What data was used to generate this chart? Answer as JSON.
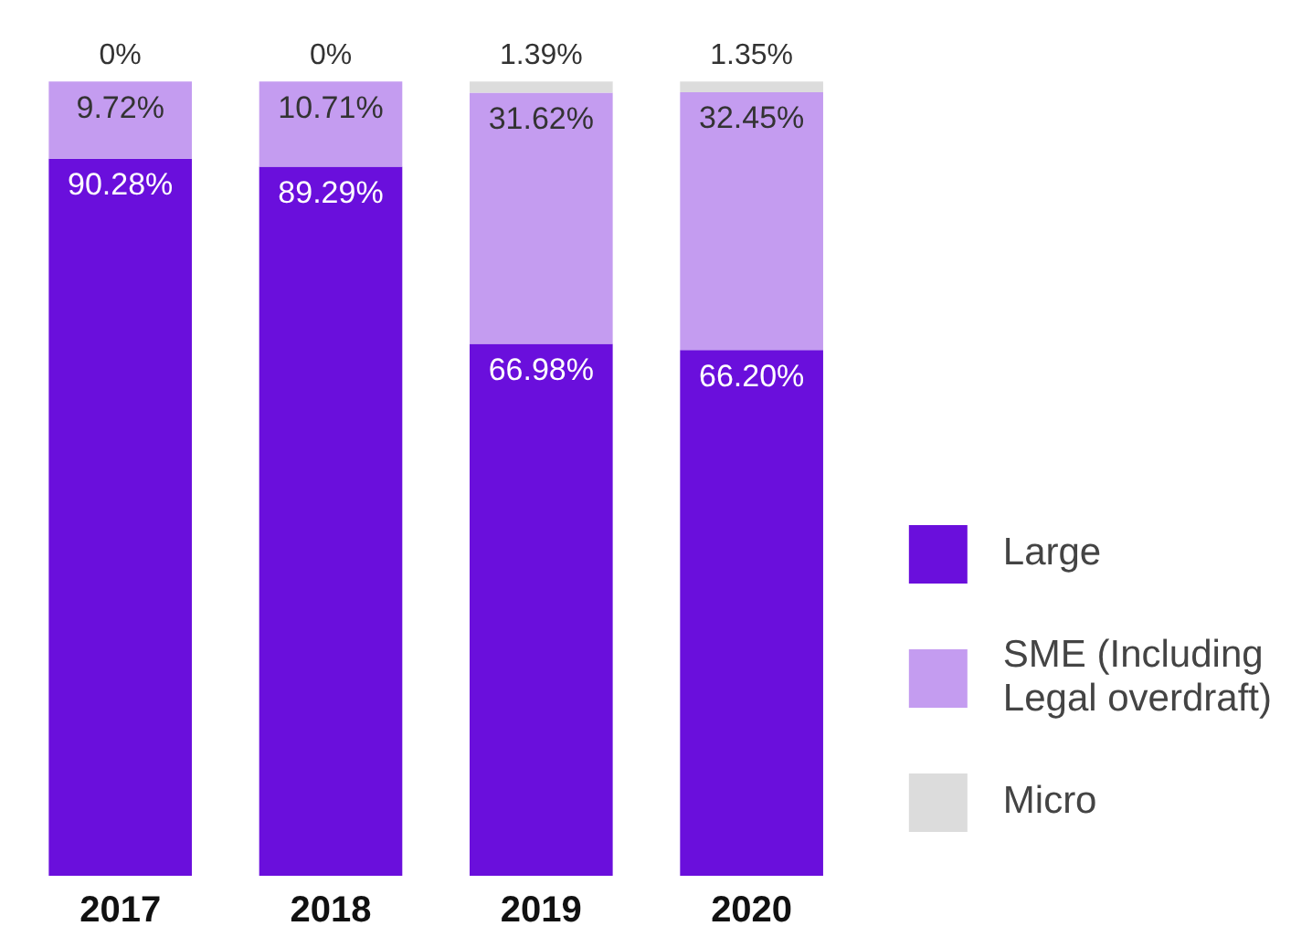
{
  "chart_data": {
    "type": "bar",
    "stacked": true,
    "categories": [
      "2017",
      "2018",
      "2019",
      "2020"
    ],
    "series": [
      {
        "name": "Large",
        "color": "#6a0fdc",
        "values": [
          90.28,
          89.29,
          66.98,
          66.2
        ],
        "value_labels": [
          "90.28%",
          "89.29%",
          "66.98%",
          "66.20%"
        ]
      },
      {
        "name": "SME (Including Legal overdraft)",
        "color": "#c49cf0",
        "values": [
          9.72,
          10.71,
          31.62,
          32.45
        ],
        "value_labels": [
          "9.72%",
          "10.71%",
          "31.62%",
          "32.45%"
        ]
      },
      {
        "name": "Micro",
        "color": "#dcdcdc",
        "values": [
          0,
          0,
          1.39,
          1.35
        ],
        "value_labels": [
          "0%",
          "0%",
          "1.39%",
          "1.35%"
        ]
      }
    ],
    "legend": "right",
    "grid": false,
    "tick_labels": "x"
  }
}
